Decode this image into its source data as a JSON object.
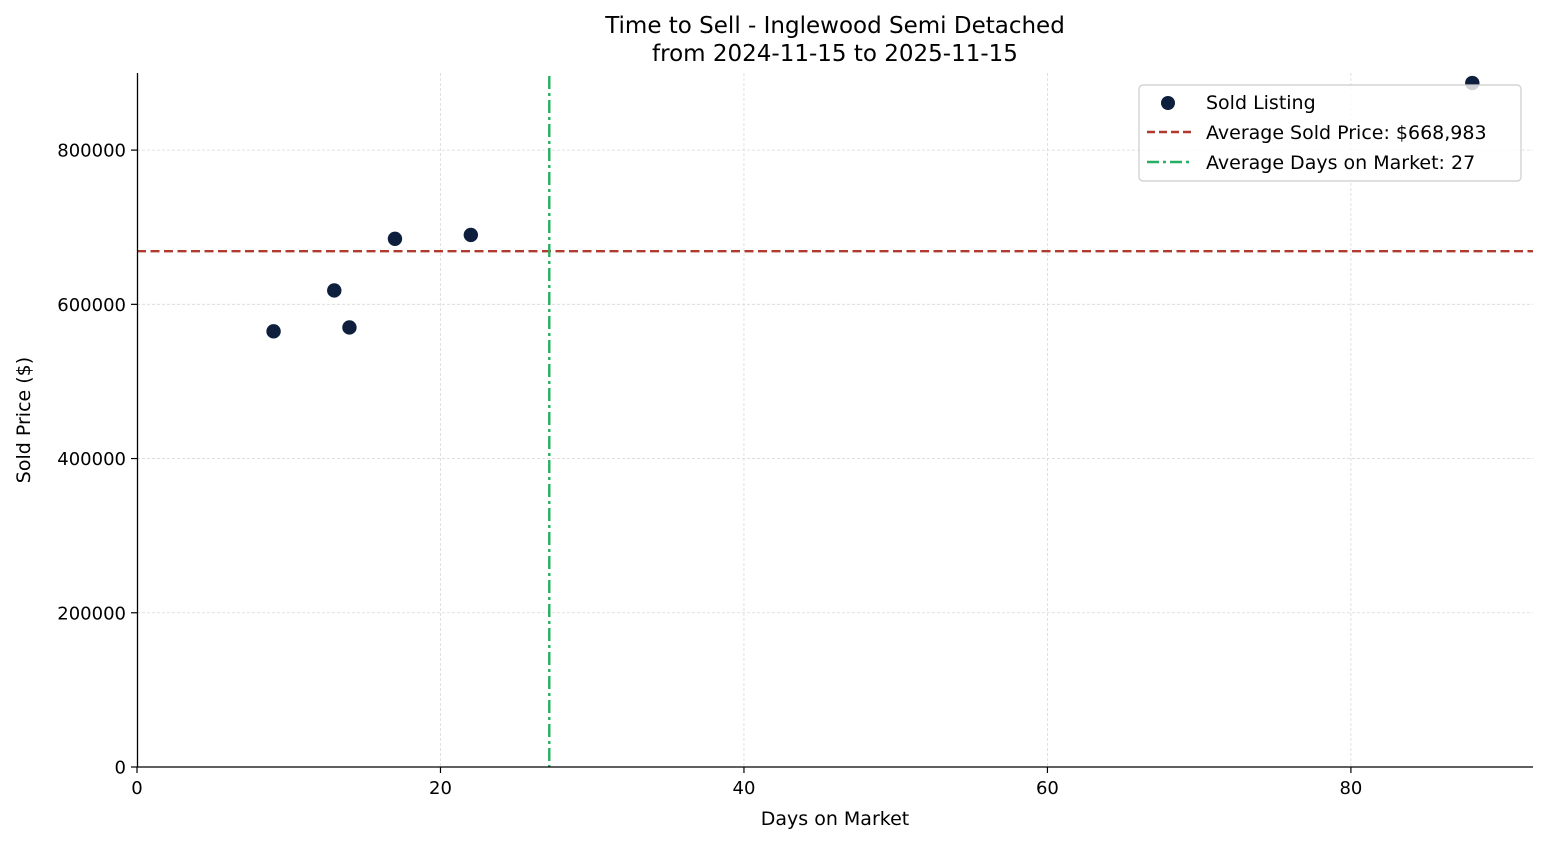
{
  "chart_data": {
    "type": "scatter",
    "title": "Time to Sell - Inglewood Semi Detached",
    "subtitle": "from 2024-11-15 to 2025-11-15",
    "xlabel": "Days on Market",
    "ylabel": "Sold Price ($)",
    "xlim": [
      0,
      92
    ],
    "ylim": [
      0,
      900000
    ],
    "xticks": [
      0,
      20,
      40,
      60,
      80
    ],
    "yticks": [
      0,
      200000,
      400000,
      600000,
      800000
    ],
    "xtick_labels": [
      "0",
      "20",
      "40",
      "60",
      "80"
    ],
    "ytick_labels": [
      "0",
      "200000",
      "400000",
      "600000",
      "800000"
    ],
    "grid": true,
    "legend_position": "top-right",
    "series": [
      {
        "name": "Sold Listing",
        "kind": "scatter",
        "color": "#0d1f3c",
        "x": [
          9,
          13,
          14,
          17,
          22,
          88
        ],
        "y": [
          565000,
          618000,
          570000,
          685000,
          690000,
          887000
        ]
      }
    ],
    "reference_lines": [
      {
        "name": "Average Sold Price: $668,983",
        "orientation": "horizontal",
        "value": 668983,
        "color": "#b03a2e",
        "style": "dashed"
      },
      {
        "name": "Average Days on Market: 27",
        "orientation": "vertical",
        "value": 27.17,
        "color": "#27ae60",
        "style": "dashdot"
      }
    ],
    "legend": [
      "Sold Listing",
      "Average Sold Price: $668,983",
      "Average Days on Market: 27"
    ]
  }
}
